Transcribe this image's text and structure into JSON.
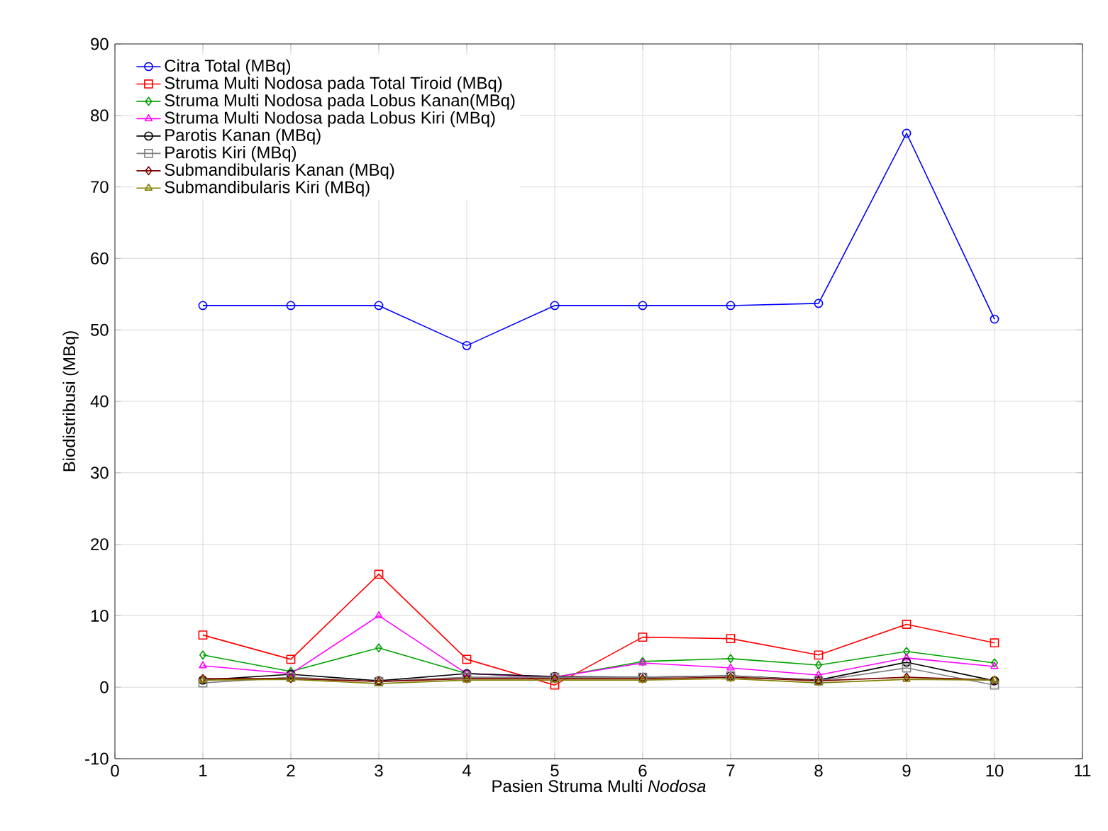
{
  "chart_data": {
    "type": "line",
    "xlabel": "Pasien Struma Multi *Nodosa*",
    "ylabel": "Biodistribusi (MBq)",
    "x": [
      1,
      2,
      3,
      4,
      5,
      6,
      7,
      8,
      9,
      10
    ],
    "xlim": [
      0,
      11
    ],
    "xticks": [
      0,
      1,
      2,
      3,
      4,
      5,
      6,
      7,
      8,
      9,
      10,
      11
    ],
    "ylim": [
      -10,
      90
    ],
    "yticks": [
      -10,
      0,
      10,
      20,
      30,
      40,
      50,
      60,
      70,
      80,
      90
    ],
    "grid": true,
    "legend": "top left",
    "line_style": "solid",
    "series": [
      {
        "name": "Citra Total  (MBq)",
        "color": "#0000ff",
        "marker": "circle",
        "values": [
          53.4,
          53.4,
          53.4,
          47.8,
          53.4,
          53.4,
          53.4,
          53.7,
          77.5,
          51.5
        ]
      },
      {
        "name": "Struma Multi Nodosa pada Total Tiroid (MBq)",
        "color": "#ff0000",
        "marker": "square",
        "values": [
          7.3,
          3.9,
          15.8,
          3.9,
          0.3,
          7.0,
          6.8,
          4.5,
          8.8,
          6.2
        ]
      },
      {
        "name": "Struma Multi Nodosa pada Lobus Kanan(MBq)",
        "color": "#00a000",
        "marker": "diamond",
        "values": [
          4.5,
          2.2,
          5.5,
          1.9,
          1.4,
          3.6,
          4.0,
          3.1,
          5.0,
          3.4
        ]
      },
      {
        "name": "Struma Multi Nodosa pada Lobus Kiri (MBq)",
        "color": "#ff00ff",
        "marker": "triangle",
        "values": [
          3.0,
          1.9,
          10.0,
          1.9,
          1.4,
          3.4,
          2.7,
          1.7,
          4.1,
          2.9
        ]
      },
      {
        "name": "Parotis Kanan (MBq)",
        "color": "#000000",
        "marker": "circle",
        "values": [
          1.0,
          1.8,
          0.9,
          1.9,
          1.5,
          1.4,
          1.6,
          1.0,
          3.5,
          0.9
        ]
      },
      {
        "name": "Parotis Kiri (MBq)",
        "color": "#808080",
        "marker": "square",
        "values": [
          0.6,
          1.4,
          0.8,
          1.4,
          1.4,
          1.4,
          1.6,
          0.9,
          2.7,
          0.3
        ]
      },
      {
        "name": "Submandibularis Kanan (MBq)",
        "color": "#800000",
        "marker": "diamond",
        "values": [
          1.2,
          1.2,
          0.8,
          1.2,
          1.2,
          1.2,
          1.4,
          0.9,
          1.4,
          1.0
        ]
      },
      {
        "name": "Submandibularis Kiri (MBq)",
        "color": "#808000",
        "marker": "triangle",
        "values": [
          1.0,
          1.1,
          0.5,
          1.0,
          1.0,
          1.0,
          1.2,
          0.6,
          1.1,
          1.0
        ]
      }
    ]
  }
}
